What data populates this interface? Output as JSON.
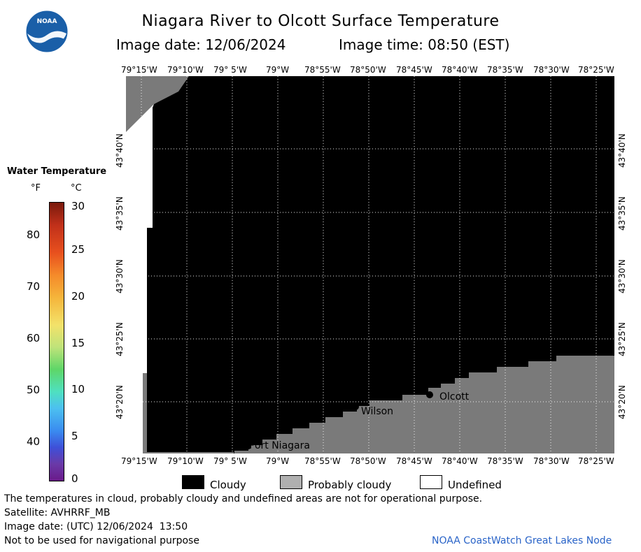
{
  "header": {
    "title": "Niagara River to Olcott Surface Temperature",
    "image_date": "Image date: 12/06/2024",
    "image_time": "Image time: 08:50 (EST)"
  },
  "logo": {
    "text": "NOAA",
    "color": "#1a5fa8"
  },
  "scale": {
    "title": "Water Temperature",
    "f_unit": "°F",
    "c_unit": "°C",
    "f_ticks": [
      "80",
      "70",
      "60",
      "50",
      "40"
    ],
    "c_ticks": [
      "30",
      "25",
      "20",
      "15",
      "10",
      "5",
      "0"
    ]
  },
  "map": {
    "lon_labels": [
      "79°15'W",
      "79°10'W",
      "79° 5'W",
      "79°W",
      "78°55'W",
      "78°50'W",
      "78°45'W",
      "78°40'W",
      "78°35'W",
      "78°30'W",
      "78°25'W"
    ],
    "lat_labels": [
      "43°40'N",
      "43°35'N",
      "43°30'N",
      "43°25'N",
      "43°20'N"
    ],
    "places": {
      "wilson": "Wilson",
      "olcott": "Olcott",
      "port_niagara": "Port Niagara"
    },
    "colors": {
      "cloudy": "#000000",
      "probably_cloudy": "#7a7a7a",
      "undefined": "#ffffff"
    }
  },
  "legend": {
    "cloudy": "Cloudy",
    "probably_cloudy": "Probably cloudy",
    "undefined": "Undefined"
  },
  "footer": {
    "note": "The temperatures in cloud, probably cloudy and undefined areas are not for operational purpose.",
    "satellite": "Satellite: AVHRRF_MB",
    "utc_date": "Image date: (UTC) 12/06/2024  13:50",
    "nav_warning": "Not to be used for navigational purpose",
    "credit": "NOAA CoastWatch Great Lakes Node"
  }
}
